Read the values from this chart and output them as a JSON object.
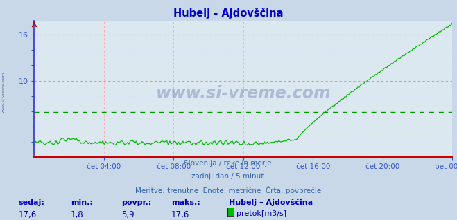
{
  "title": "Hubelj - Ajdovščina",
  "title_color": "#0000cc",
  "bg_color": "#c8d8e8",
  "plot_bg_color": "#dce8f0",
  "grid_color_h": "#ff8888",
  "grid_color_v": "#ffaaaa",
  "grid_dotted": "#ddddff",
  "line_color": "#00bb00",
  "avg_line_color": "#009900",
  "x_axis_color": "#cc0000",
  "y_axis_color": "#3333cc",
  "tick_label_color": "#3355cc",
  "watermark_color": "#334488",
  "subtitle_color": "#3366aa",
  "stats_label_color": "#0000bb",
  "stats_value_color": "#0000aa",
  "ylim_min": 0,
  "ylim_max": 17.8,
  "avg_value": 5.9,
  "min_value": 1.8,
  "max_value": 17.6,
  "current_value": 17.6,
  "x_labels": [
    "čet 04:00",
    "čet 08:00",
    "čet 12:00",
    "čet 16:00",
    "čet 20:00",
    "pet 00:00"
  ],
  "x_tick_positions": [
    0.1667,
    0.3333,
    0.5,
    0.6667,
    0.8333,
    1.0
  ],
  "y_ticks_major": [
    10,
    16
  ],
  "y_ticks_minor": [
    2,
    4,
    6,
    8,
    12,
    14
  ],
  "subtitle_line1": "Slovenija / reke in morje.",
  "subtitle_line2": "zadnji dan / 5 minut.",
  "subtitle_line3": "Meritve: trenutne  Enote: metrične  Črta: povprečje",
  "legend_station": "Hubelj – Ajdovščina",
  "legend_unit": "pretok[m3/s]",
  "stat_labels": [
    "sedaj:",
    "min.:",
    "povpr.:",
    "maks.:"
  ],
  "stat_values": [
    "17,6",
    "1,8",
    "5,9",
    "17,6"
  ],
  "watermark": "www.si-vreme.com",
  "left_label": "www.si-vreme.com"
}
